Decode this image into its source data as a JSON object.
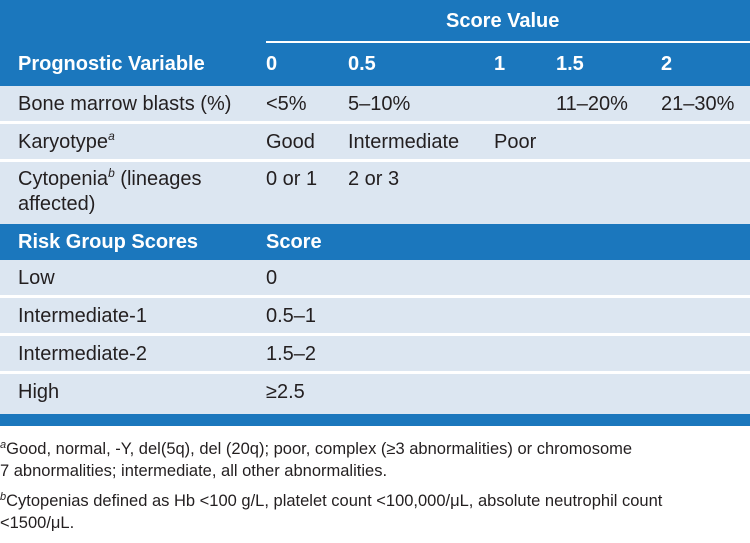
{
  "header": {
    "group_title": "Score Value",
    "variable_label": "Prognostic Variable",
    "score_columns": [
      "0",
      "0.5",
      "1",
      "1.5",
      "2"
    ]
  },
  "rows": [
    {
      "label": "Bone marrow blasts (%)",
      "values": [
        "<5%",
        "5–10%",
        "",
        "11–20%",
        "21–30%"
      ]
    },
    {
      "label": "Karyotype",
      "label_sup": "a",
      "values": [
        "Good",
        "Intermediate",
        "Poor",
        "",
        ""
      ]
    },
    {
      "label": "Cytopenia",
      "label_sup": "b",
      "label_rest_line1": " (lineages",
      "label_line2": "affected)",
      "values": [
        "0 or 1",
        "2 or 3",
        "",
        "",
        ""
      ]
    }
  ],
  "risk_header": {
    "label": "Risk Group Scores",
    "score_label": "Score"
  },
  "risk_rows": [
    {
      "label": "Low",
      "score": "0"
    },
    {
      "label": "Intermediate-1",
      "score": "0.5–1"
    },
    {
      "label": "Intermediate-2",
      "score": "1.5–2"
    },
    {
      "label": "High",
      "score": "≥2.5"
    }
  ],
  "footnotes": [
    {
      "mark": "a",
      "line1": "Good, normal, -Y, del(5q), del (20q); poor, complex (≥3 abnormalities) or chromosome",
      "line2": "7 abnormalities; intermediate, all other abnormalities."
    },
    {
      "mark": "b",
      "line1": "Cytopenias defined as Hb <100 g/L, platelet count <100,000/μL, absolute neutrophil count",
      "line2": "<1500/μL."
    }
  ],
  "colors": {
    "header_blue": "#1b77bd",
    "row_tint": "#dce6f1",
    "text": "#231f20"
  }
}
